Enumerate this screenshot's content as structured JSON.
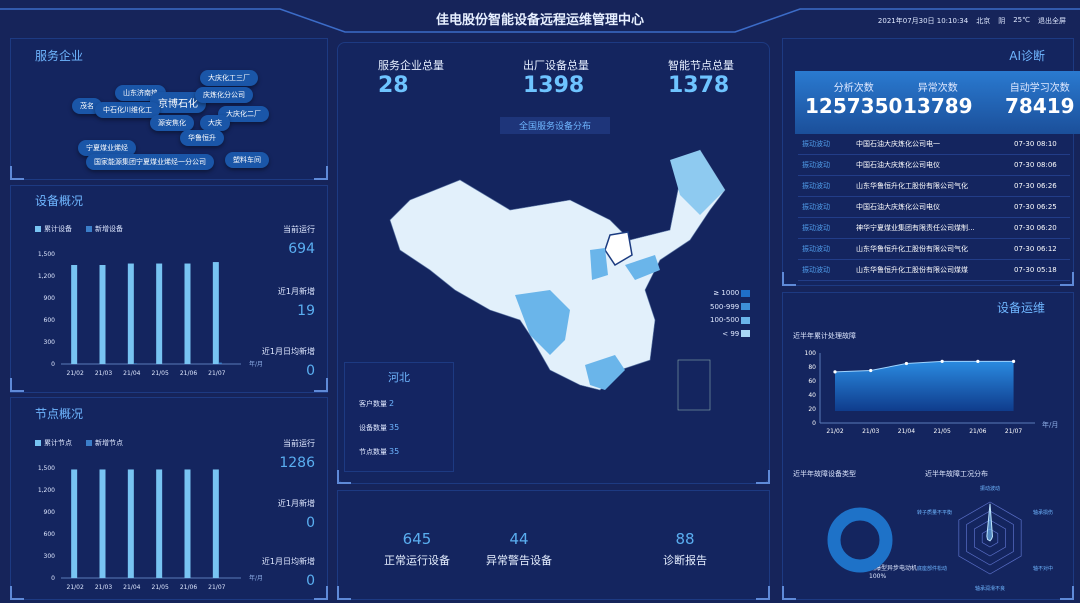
{
  "header": {
    "title": "佳电股份智能设备远程运维管理中心",
    "datetime": "2021年07月30日 10:10:34",
    "city": "北京",
    "weather": "阴",
    "temperature": "25℃",
    "exit_fullscreen": "退出全屏"
  },
  "service_companies": {
    "title": "服务企业",
    "tags": [
      "大庆化工三厂",
      "山东济南热",
      "京博石化",
      "庆炼化分公司",
      "茂名",
      "中石化川维化工",
      "大庆化二厂",
      "源安焦化",
      "大庆",
      "华鲁恒升",
      "宁夏煤业烯烃",
      "国家能源集团宁夏煤业烯烃一分公司",
      "塑料车间"
    ]
  },
  "device_overview": {
    "title": "设备概况",
    "legend": [
      "累计设备",
      "新增设备"
    ],
    "unit": "年/月",
    "stats": [
      {
        "label": "当前运行",
        "value": "694"
      },
      {
        "label": "近1月新增",
        "value": "19"
      },
      {
        "label": "近1月日均新增",
        "value": "0"
      }
    ]
  },
  "node_overview": {
    "title": "节点概况",
    "legend": [
      "累计节点",
      "新增节点"
    ],
    "unit": "年/月",
    "stats": [
      {
        "label": "当前运行",
        "value": "1286"
      },
      {
        "label": "近1月新增",
        "value": "0"
      },
      {
        "label": "近1月日均新增",
        "value": "0"
      }
    ]
  },
  "center": {
    "stats": [
      {
        "label": "服务企业总量",
        "value": "28"
      },
      {
        "label": "出厂设备总量",
        "value": "1398"
      },
      {
        "label": "智能节点总量",
        "value": "1378"
      }
    ],
    "map_title": "全国服务设备分布",
    "map_legend": [
      "≥ 1000",
      "500-999",
      "100-500",
      "< 99"
    ],
    "map_legend_colors": [
      "#1f6fc9",
      "#3d8fd8",
      "#6ab5ea",
      "#a8d6f5"
    ],
    "province": {
      "name": "河北",
      "rows": [
        {
          "label": "客户数量",
          "value": "2"
        },
        {
          "label": "设备数量",
          "value": "35"
        },
        {
          "label": "节点数量",
          "value": "35"
        }
      ]
    },
    "bottom": [
      {
        "label": "正常运行设备",
        "value": "645"
      },
      {
        "label": "异常警告设备",
        "value": "44"
      },
      {
        "label": "诊断报告",
        "value": "88"
      }
    ]
  },
  "ai": {
    "title": "AI诊断",
    "counters": [
      {
        "label": "分析次数",
        "value": "1257350"
      },
      {
        "label": "异常次数",
        "value": "13789"
      },
      {
        "label": "自动学习次数",
        "value": "78419"
      }
    ],
    "rows": [
      {
        "type": "振动波动",
        "name": "中国石油大庆炼化公司电一",
        "time": "07-30 08:10"
      },
      {
        "type": "振动波动",
        "name": "中国石油大庆炼化公司电仪",
        "time": "07-30 08:06"
      },
      {
        "type": "振动波动",
        "name": "山东华鲁恒升化工股份有限公司气化",
        "time": "07-30 06:26"
      },
      {
        "type": "振动波动",
        "name": "中国石油大庆炼化公司电仪",
        "time": "07-30 06:25"
      },
      {
        "type": "振动波动",
        "name": "神华宁夏煤业集团有限责任公司煤制...",
        "time": "07-30 06:20"
      },
      {
        "type": "振动波动",
        "name": "山东华鲁恒升化工股份有限公司气化",
        "time": "07-30 06:12"
      },
      {
        "type": "振动波动",
        "name": "山东华鲁恒升化工股份有限公司煤煤",
        "time": "07-30 05:18"
      }
    ]
  },
  "maintenance": {
    "title": "设备运维",
    "line_title": "近半年累计处理故障",
    "type_title": "近半年故障设备类型",
    "radar_title": "近半年故障工况分布",
    "donut_label": "隔爆型异步电动机",
    "donut_percent": "100%",
    "radar_axes": [
      "振动波动",
      "轴承损伤",
      "轴不对中",
      "轴承润滑不良",
      "底座部件松动",
      "转子质量不平衡"
    ]
  },
  "chart_data": [
    {
      "type": "bar",
      "title": "设备概况",
      "categories": [
        "21/02",
        "21/03",
        "21/04",
        "21/05",
        "21/06",
        "21/07"
      ],
      "xlabel": "年/月",
      "ylim": [
        0,
        1500
      ],
      "yticks": [
        "0",
        "300",
        "600",
        "900",
        "1,200",
        "1,500"
      ],
      "series": [
        {
          "name": "累计设备",
          "values": [
            1350,
            1350,
            1370,
            1370,
            1370,
            1390
          ]
        },
        {
          "name": "新增设备",
          "values": [
            0,
            0,
            10,
            0,
            0,
            19
          ]
        }
      ],
      "colors": [
        "#78c4f2",
        "#3b7ec9"
      ]
    },
    {
      "type": "bar",
      "title": "节点概况",
      "categories": [
        "21/02",
        "21/03",
        "21/04",
        "21/05",
        "21/06",
        "21/07"
      ],
      "xlabel": "年/月",
      "ylim": [
        0,
        1500
      ],
      "yticks": [
        "0",
        "300",
        "600",
        "900",
        "1,200",
        "1,500"
      ],
      "series": [
        {
          "name": "累计节点",
          "values": [
            1480,
            1480,
            1480,
            1480,
            1480,
            1480
          ]
        },
        {
          "name": "新增节点",
          "values": [
            0,
            0,
            0,
            0,
            0,
            0
          ]
        }
      ],
      "colors": [
        "#78c4f2",
        "#3b7ec9"
      ]
    },
    {
      "type": "area",
      "title": "近半年累计处理故障",
      "categories": [
        "21/02",
        "21/03",
        "21/04",
        "21/05",
        "21/06",
        "21/07"
      ],
      "xlabel": "年/月",
      "ylim": [
        0,
        100
      ],
      "yticks": [
        "0",
        "20",
        "40",
        "60",
        "80",
        "100"
      ],
      "values": [
        73,
        75,
        85,
        88,
        88,
        88
      ]
    },
    {
      "type": "pie",
      "title": "近半年故障设备类型",
      "labels": [
        "隔爆型异步电动机"
      ],
      "values": [
        100
      ]
    },
    {
      "type": "radar",
      "title": "近半年故障工况分布",
      "axes": [
        "振动波动",
        "轴承损伤",
        "轴不对中",
        "轴承润滑不良",
        "底座部件松动",
        "转子质量不平衡"
      ],
      "values": [
        95,
        8,
        5,
        8,
        8,
        10
      ]
    }
  ]
}
